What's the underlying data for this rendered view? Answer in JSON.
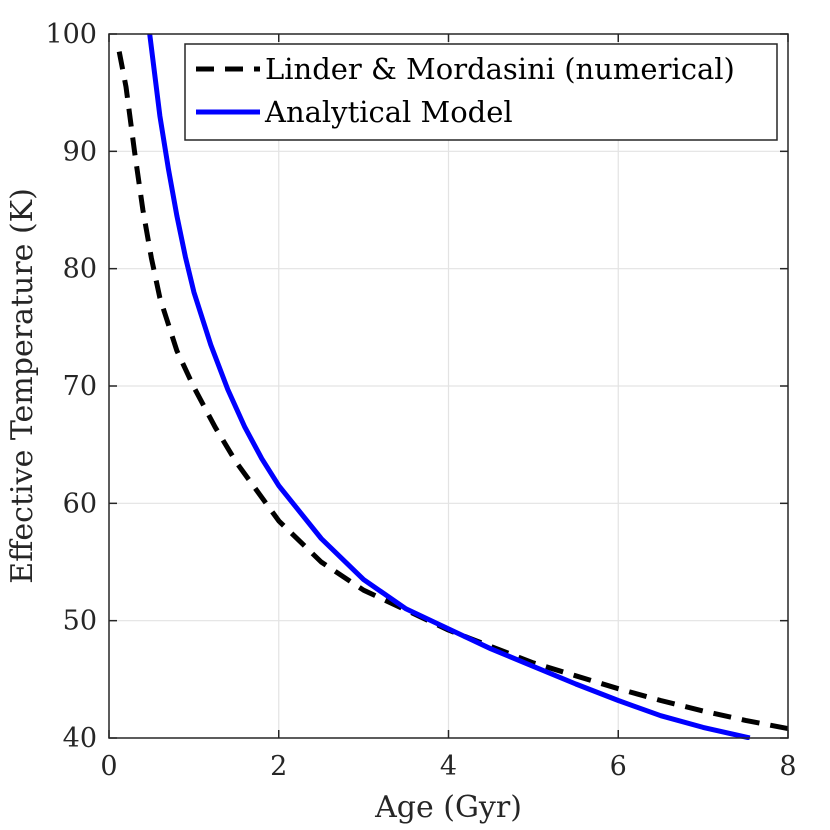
{
  "chart_data": {
    "type": "line",
    "title": "",
    "xlabel": "Age (Gyr)",
    "ylabel": "Effective Temperature (K)",
    "xlim": [
      0,
      8
    ],
    "ylim": [
      40,
      100
    ],
    "xticks": [
      0,
      2,
      4,
      6,
      8
    ],
    "yticks": [
      40,
      50,
      60,
      70,
      80,
      90,
      100
    ],
    "grid": true,
    "legend_position": "top-right",
    "series": [
      {
        "name": "Linder & Mordasini (numerical)",
        "style": "dashed",
        "color": "#000000",
        "x": [
          0.12,
          0.2,
          0.3,
          0.4,
          0.5,
          0.6,
          0.8,
          1.0,
          1.25,
          1.5,
          2.0,
          2.5,
          3.0,
          3.5,
          4.0,
          4.5,
          5.0,
          5.5,
          6.0,
          6.5,
          7.0,
          7.5,
          8.0
        ],
        "values": [
          98.5,
          95.5,
          90.0,
          85.0,
          80.9,
          77.5,
          73.0,
          69.9,
          66.5,
          63.5,
          58.5,
          55.0,
          52.6,
          50.9,
          49.2,
          47.8,
          46.4,
          45.3,
          44.2,
          43.2,
          42.3,
          41.5,
          40.8
        ]
      },
      {
        "name": "Analytical Model",
        "style": "solid",
        "color": "#0000ff",
        "x": [
          0.48,
          0.6,
          0.7,
          0.8,
          0.9,
          1.0,
          1.2,
          1.4,
          1.6,
          1.8,
          2.0,
          2.5,
          3.0,
          3.5,
          4.0,
          4.5,
          5.0,
          5.5,
          6.0,
          6.5,
          7.0,
          7.55
        ],
        "values": [
          100.0,
          93.0,
          88.5,
          84.5,
          81.0,
          78.0,
          73.5,
          69.7,
          66.5,
          63.8,
          61.5,
          57.0,
          53.5,
          51.0,
          49.3,
          47.6,
          46.1,
          44.6,
          43.2,
          41.9,
          40.9,
          40.0
        ]
      }
    ]
  },
  "colors": {
    "grid": "#e3e3e3",
    "axis": "#262626",
    "dashed": "#000000",
    "solid": "#0000ff"
  }
}
